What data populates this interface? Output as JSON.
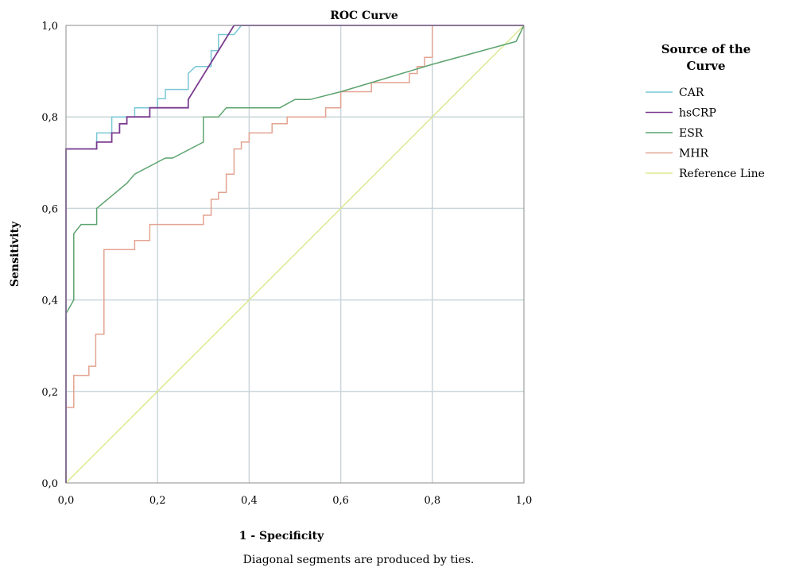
{
  "chart_data": {
    "type": "line",
    "title": "ROC Curve",
    "xlabel": "1 - Specificity",
    "ylabel": "Sensitivity",
    "footnote": "Diagonal segments are produced by ties.",
    "xlim": [
      0,
      1
    ],
    "ylim": [
      0,
      1
    ],
    "x_ticks": [
      "0,0",
      "0,2",
      "0,4",
      "0,6",
      "0,8",
      "1,0"
    ],
    "y_ticks": [
      "0,0",
      "0,2",
      "0,4",
      "0,6",
      "0,8",
      "1,0"
    ],
    "grid": true,
    "legend": {
      "title": "Source of the Curve",
      "placement": "right"
    },
    "series": [
      {
        "name": "Reference Line",
        "color": "#dde88d",
        "points": [
          [
            0,
            0
          ],
          [
            1,
            1
          ]
        ]
      },
      {
        "name": "MHR",
        "color": "#e3a391",
        "points": [
          [
            0,
            0
          ],
          [
            0,
            0.165
          ],
          [
            0.017,
            0.165
          ],
          [
            0.017,
            0.235
          ],
          [
            0.05,
            0.235
          ],
          [
            0.05,
            0.255
          ],
          [
            0.065,
            0.255
          ],
          [
            0.065,
            0.325
          ],
          [
            0.083,
            0.325
          ],
          [
            0.083,
            0.51
          ],
          [
            0.15,
            0.51
          ],
          [
            0.15,
            0.53
          ],
          [
            0.183,
            0.53
          ],
          [
            0.183,
            0.565
          ],
          [
            0.3,
            0.565
          ],
          [
            0.3,
            0.585
          ],
          [
            0.317,
            0.585
          ],
          [
            0.317,
            0.62
          ],
          [
            0.333,
            0.62
          ],
          [
            0.333,
            0.635
          ],
          [
            0.35,
            0.635
          ],
          [
            0.35,
            0.675
          ],
          [
            0.367,
            0.675
          ],
          [
            0.367,
            0.73
          ],
          [
            0.383,
            0.73
          ],
          [
            0.383,
            0.745
          ],
          [
            0.4,
            0.745
          ],
          [
            0.4,
            0.765
          ],
          [
            0.45,
            0.765
          ],
          [
            0.45,
            0.785
          ],
          [
            0.483,
            0.785
          ],
          [
            0.483,
            0.8
          ],
          [
            0.567,
            0.8
          ],
          [
            0.567,
            0.82
          ],
          [
            0.6,
            0.82
          ],
          [
            0.6,
            0.855
          ],
          [
            0.667,
            0.855
          ],
          [
            0.667,
            0.875
          ],
          [
            0.75,
            0.875
          ],
          [
            0.75,
            0.895
          ],
          [
            0.767,
            0.895
          ],
          [
            0.767,
            0.91
          ],
          [
            0.783,
            0.91
          ],
          [
            0.783,
            0.93
          ],
          [
            0.8,
            0.93
          ],
          [
            0.8,
            1
          ],
          [
            1,
            1
          ]
        ]
      },
      {
        "name": "ESR",
        "color": "#5ca36e",
        "points": [
          [
            0,
            0
          ],
          [
            0,
            0.37
          ],
          [
            0.017,
            0.4
          ],
          [
            0.017,
            0.545
          ],
          [
            0.033,
            0.565
          ],
          [
            0.067,
            0.565
          ],
          [
            0.067,
            0.6
          ],
          [
            0.133,
            0.655
          ],
          [
            0.15,
            0.675
          ],
          [
            0.217,
            0.71
          ],
          [
            0.233,
            0.71
          ],
          [
            0.3,
            0.745
          ],
          [
            0.3,
            0.8
          ],
          [
            0.333,
            0.8
          ],
          [
            0.35,
            0.82
          ],
          [
            0.467,
            0.82
          ],
          [
            0.5,
            0.838
          ],
          [
            0.533,
            0.838
          ],
          [
            0.6,
            0.855
          ],
          [
            0.667,
            0.875
          ],
          [
            0.8,
            0.915
          ],
          [
            0.983,
            0.965
          ],
          [
            1,
            1
          ]
        ]
      },
      {
        "name": "CAR",
        "color": "#79c7d6",
        "points": [
          [
            0,
            0
          ],
          [
            0,
            0.73
          ],
          [
            0.067,
            0.73
          ],
          [
            0.067,
            0.765
          ],
          [
            0.1,
            0.765
          ],
          [
            0.1,
            0.8
          ],
          [
            0.15,
            0.8
          ],
          [
            0.15,
            0.82
          ],
          [
            0.2,
            0.82
          ],
          [
            0.2,
            0.84
          ],
          [
            0.217,
            0.84
          ],
          [
            0.217,
            0.86
          ],
          [
            0.267,
            0.86
          ],
          [
            0.267,
            0.895
          ],
          [
            0.283,
            0.91
          ],
          [
            0.317,
            0.91
          ],
          [
            0.317,
            0.945
          ],
          [
            0.333,
            0.945
          ],
          [
            0.333,
            0.98
          ],
          [
            0.35,
            0.98
          ],
          [
            0.367,
            0.98
          ],
          [
            0.383,
            1
          ],
          [
            1,
            1
          ]
        ]
      },
      {
        "name": "hsCRP",
        "color": "#7a3b8f",
        "points": [
          [
            0,
            0
          ],
          [
            0,
            0.73
          ],
          [
            0.067,
            0.73
          ],
          [
            0.067,
            0.745
          ],
          [
            0.1,
            0.745
          ],
          [
            0.1,
            0.765
          ],
          [
            0.117,
            0.765
          ],
          [
            0.117,
            0.785
          ],
          [
            0.133,
            0.785
          ],
          [
            0.133,
            0.8
          ],
          [
            0.183,
            0.8
          ],
          [
            0.183,
            0.82
          ],
          [
            0.267,
            0.82
          ],
          [
            0.267,
            0.838
          ],
          [
            0.367,
            1
          ],
          [
            1,
            1
          ]
        ]
      }
    ],
    "legend_order": [
      "CAR",
      "hsCRP",
      "ESR",
      "MHR",
      "Reference Line"
    ]
  }
}
